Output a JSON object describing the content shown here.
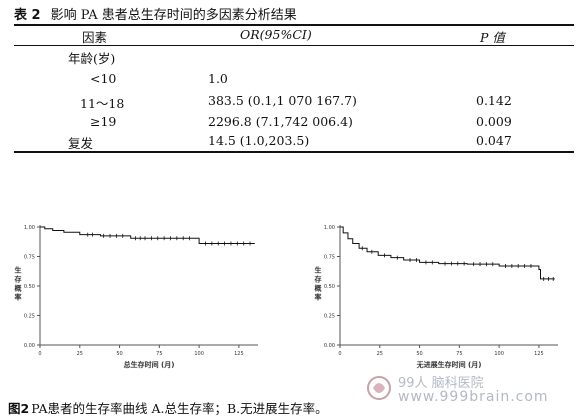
{
  "table": {
    "label": "表 2",
    "title": "影响 PA 患者总生存时间的多因素分析结果",
    "headers": {
      "factor": "因素",
      "or": "OR(95%CI)",
      "p": "P 值"
    },
    "rows": [
      {
        "factor": "年龄(岁)",
        "or": "",
        "p": ""
      },
      {
        "factor": "<10",
        "or": "1.0",
        "p": ""
      },
      {
        "factor": "11～18",
        "or": "383.5 (0.1,1 070 167.7)",
        "p": "0.142"
      },
      {
        "factor": "≥19",
        "or": "2296.8 (7.1,742 006.4)",
        "p": "0.009"
      },
      {
        "factor": "复发",
        "or": "14.5 (1.0,203.5)",
        "p": "0.047"
      }
    ]
  },
  "figure": {
    "label": "图2",
    "caption": "PA患者的生存率曲线 A.总生存率；B.无进展生存率。"
  },
  "watermark": {
    "text": "99人 脑科医院",
    "url": "www.999brain.com"
  },
  "chart_data": [
    {
      "type": "line",
      "panel": "A",
      "xlabel": "总生存时间 (月)",
      "ylabel": "生存概率",
      "xlim": [
        0,
        137
      ],
      "ylim": [
        0,
        1
      ],
      "xticks": [
        0,
        25,
        50,
        75,
        100,
        125
      ],
      "yticks": [
        0.0,
        0.25,
        0.5,
        0.75,
        1.0
      ],
      "series": [
        {
          "step": [
            [
              0,
              1.0
            ],
            [
              3,
              0.985
            ],
            [
              8,
              0.97
            ],
            [
              15,
              0.955
            ],
            [
              25,
              0.935
            ],
            [
              38,
              0.925
            ],
            [
              57,
              0.905
            ],
            [
              100,
              0.86
            ],
            [
              135,
              0.86
            ]
          ],
          "censors": [
            30,
            33,
            40,
            44,
            48,
            52,
            60,
            63,
            66,
            70,
            74,
            78,
            82,
            86,
            90,
            94,
            104,
            108,
            112,
            116,
            120,
            124,
            128,
            132
          ]
        }
      ]
    },
    {
      "type": "line",
      "panel": "B",
      "xlabel": "无进展生存时间 (月)",
      "ylabel": "生存概率",
      "xlim": [
        0,
        137
      ],
      "ylim": [
        0,
        1
      ],
      "xticks": [
        0,
        25,
        50,
        75,
        100,
        125
      ],
      "yticks": [
        0.0,
        0.25,
        0.5,
        0.75,
        1.0
      ],
      "series": [
        {
          "step": [
            [
              0,
              1.0
            ],
            [
              2,
              0.95
            ],
            [
              5,
              0.9
            ],
            [
              8,
              0.86
            ],
            [
              12,
              0.82
            ],
            [
              17,
              0.79
            ],
            [
              24,
              0.76
            ],
            [
              32,
              0.74
            ],
            [
              40,
              0.72
            ],
            [
              50,
              0.7
            ],
            [
              62,
              0.69
            ],
            [
              80,
              0.685
            ],
            [
              100,
              0.67
            ],
            [
              125,
              0.64
            ],
            [
              126,
              0.56
            ],
            [
              135,
              0.56
            ]
          ],
          "censors": [
            14,
            20,
            28,
            36,
            44,
            48,
            54,
            58,
            66,
            70,
            74,
            78,
            84,
            88,
            92,
            96,
            104,
            108,
            112,
            116,
            120,
            128,
            131,
            134
          ]
        }
      ]
    }
  ]
}
